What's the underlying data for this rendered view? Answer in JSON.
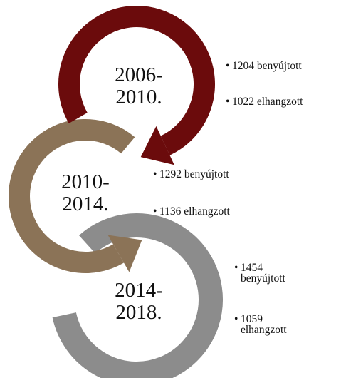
{
  "nodes": [
    {
      "label": [
        "2006-",
        "2010."
      ],
      "items": [
        "1204 benyújtott",
        "1022 elhangzott"
      ]
    },
    {
      "label": [
        "2010-",
        "2014."
      ],
      "items": [
        "1292 benyújtott",
        "1136 elhangzott"
      ]
    },
    {
      "label": [
        "2014-",
        "2018."
      ],
      "items": [
        "1454 benyújtott",
        "1059 elhangzott"
      ]
    }
  ]
}
